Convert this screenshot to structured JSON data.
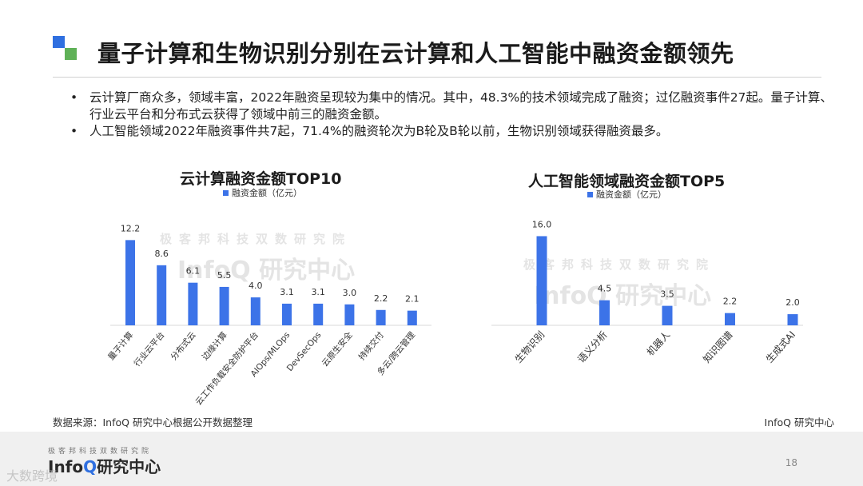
{
  "page": {
    "title": "量子计算和生物识别分别在云计算和人工智能中融资金额领先",
    "bullets": [
      "云计算厂商众多，领域丰富，2022年融资呈现较为集中的情况。其中，48.3%的技术领域完成了融资；过亿融资事件27起。量子计算、行业云平台和分布式云获得了领域中前三的融资金额。",
      "人工智能领域2022年融资事件共7起，71.4%的融资轮次为B轮及B轮以前，生物识别领域获得融资最多。"
    ],
    "source": "数据来源：InfoQ 研究中心根据公开数据整理",
    "brand_right": "InfoQ 研究中心",
    "page_number": "18",
    "footer_small": "极客邦科技双数研究院",
    "footer_brand_prefix": "Info",
    "footer_brand_q": "Q",
    "footer_brand_suffix": "研究中心",
    "watermark_line1": "极客邦科技双数研究院",
    "watermark_line2": "InfoQ 研究中心",
    "corner_mark": "大数跨境",
    "bar_color": "#3c73e8"
  },
  "chart_data": [
    {
      "type": "bar",
      "title": "云计算融资金额TOP10",
      "legend": "融资金额（亿元）",
      "categories": [
        "量子计算",
        "行业云平台",
        "分布式云",
        "边缘计算",
        "云工作负载安全防护平台",
        "AIOps/MLOps",
        "DevSecOps",
        "云原生安全",
        "持续交付",
        "多云/跨云管理"
      ],
      "values": [
        12.2,
        8.6,
        6.1,
        5.5,
        4.0,
        3.1,
        3.1,
        3.0,
        2.2,
        2.1
      ],
      "value_labels": [
        "12.2",
        "8.6",
        "6.1",
        "5.5",
        "4.0",
        "3.1",
        "3.1",
        "3.0",
        "2.2",
        "2.1"
      ],
      "ylim": [
        0,
        13.5
      ],
      "grid": false
    },
    {
      "type": "bar",
      "title": "人工智能领域融资金额TOP5",
      "legend": "融资金额（亿元）",
      "categories": [
        "生物识别",
        "语义分析",
        "机器人",
        "知识图谱",
        "生成式AI"
      ],
      "values": [
        16.0,
        4.5,
        3.5,
        2.2,
        2.0
      ],
      "value_labels": [
        "16.0",
        "4.5",
        "3.5",
        "2.2",
        "2.0"
      ],
      "ylim": [
        0,
        17.5
      ],
      "grid": false
    }
  ]
}
